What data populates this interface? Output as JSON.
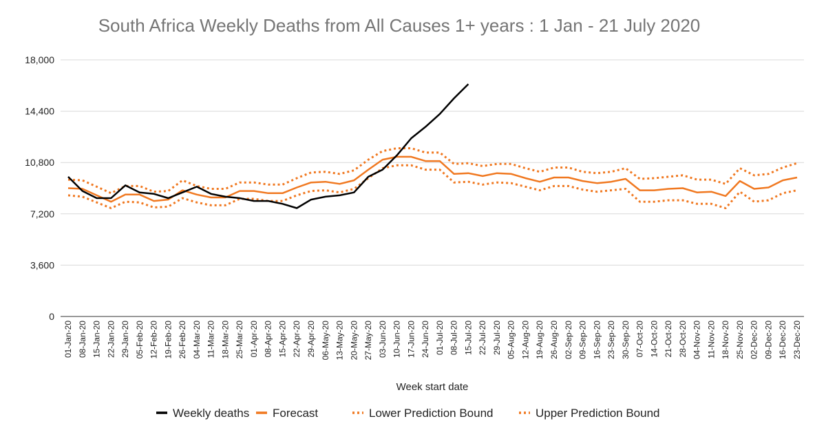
{
  "chart_data": {
    "type": "line",
    "title": "South Africa Weekly Deaths from All Causes 1+ years : 1 Jan  - 21 July 2020",
    "xlabel": "Week start date",
    "ylabel": "",
    "ylim": [
      0,
      18000
    ],
    "yticks": [
      "0",
      "3,600",
      "7,200",
      "10,800",
      "14,400",
      "18,000"
    ],
    "ytick_values": [
      0,
      3600,
      7200,
      10800,
      14400,
      18000
    ],
    "grid": true,
    "legend_position": "bottom",
    "categories": [
      "01-Jan-20",
      "08-Jan-20",
      "15-Jan-20",
      "22-Jan-20",
      "29-Jan-20",
      "05-Feb-20",
      "12-Feb-20",
      "19-Feb-20",
      "26-Feb-20",
      "04-Mar-20",
      "11-Mar-20",
      "18-Mar-20",
      "25-Mar-20",
      "01-Apr-20",
      "08-Apr-20",
      "15-Apr-20",
      "22-Apr-20",
      "29-Apr-20",
      "06-May-20",
      "13-May-20",
      "20-May-20",
      "27-May-20",
      "03-Jun-20",
      "10-Jun-20",
      "17-Jun-20",
      "24-Jun-20",
      "01-Jul-20",
      "08-Jul-20",
      "15-Jul-20",
      "22-Jul-20",
      "29-Jul-20",
      "05-Aug-20",
      "12-Aug-20",
      "19-Aug-20",
      "26-Aug-20",
      "02-Sep-20",
      "09-Sep-20",
      "16-Sep-20",
      "23-Sep-20",
      "30-Sep-20",
      "07-Oct-20",
      "14-Oct-20",
      "21-Oct-20",
      "28-Oct-20",
      "04-Nov-20",
      "11-Nov-20",
      "18-Nov-20",
      "25-Nov-20",
      "02-Dec-20",
      "09-Dec-20",
      "16-Dec-20",
      "23-Dec-20"
    ],
    "series": [
      {
        "name": "Weekly deaths",
        "color": "#000000",
        "style": "solid",
        "values": [
          9800,
          8800,
          8300,
          8300,
          9200,
          8700,
          8600,
          8300,
          8700,
          9100,
          8600,
          8400,
          8300,
          8100,
          8100,
          7900,
          7600,
          8200,
          8400,
          8500,
          8700,
          9800,
          10300,
          11300,
          12500,
          13300,
          14200,
          15300,
          16300,
          null,
          null,
          null,
          null,
          null,
          null,
          null,
          null,
          null,
          null,
          null,
          null,
          null,
          null,
          null,
          null,
          null,
          null,
          null,
          null,
          null,
          null,
          null
        ]
      },
      {
        "name": "Forecast",
        "color": "#f07820",
        "style": "solid",
        "values": [
          9000,
          8950,
          8500,
          8050,
          8550,
          8550,
          8100,
          8200,
          8850,
          8550,
          8350,
          8350,
          8800,
          8800,
          8650,
          8650,
          9050,
          9400,
          9450,
          9300,
          9550,
          10300,
          11000,
          11200,
          11200,
          10900,
          10900,
          10000,
          10050,
          9850,
          10050,
          10000,
          9700,
          9450,
          9750,
          9750,
          9500,
          9350,
          9450,
          9650,
          8850,
          8850,
          8950,
          9000,
          8700,
          8750,
          8450,
          9500,
          8950,
          9050,
          9550,
          9750
        ]
      },
      {
        "name": "Lower Prediction Bound",
        "color": "#f07820",
        "style": "dotted",
        "values": [
          8500,
          8400,
          8000,
          7600,
          8050,
          8000,
          7650,
          7700,
          8300,
          8000,
          7800,
          7800,
          8250,
          8250,
          8100,
          8100,
          8500,
          8800,
          8850,
          8700,
          8950,
          9700,
          10400,
          10600,
          10600,
          10300,
          10300,
          9400,
          9450,
          9250,
          9400,
          9350,
          9100,
          8850,
          9150,
          9150,
          8900,
          8750,
          8850,
          8950,
          8050,
          8050,
          8150,
          8150,
          7900,
          7900,
          7600,
          8750,
          8050,
          8150,
          8650,
          8850
        ]
      },
      {
        "name": "Upper Prediction Bound",
        "color": "#f07820",
        "style": "dotted",
        "values": [
          9600,
          9550,
          9100,
          8650,
          9150,
          9150,
          8750,
          8800,
          9550,
          9150,
          8950,
          8950,
          9400,
          9400,
          9250,
          9250,
          9700,
          10100,
          10150,
          10000,
          10250,
          11000,
          11600,
          11800,
          11800,
          11500,
          11500,
          10700,
          10750,
          10550,
          10700,
          10700,
          10400,
          10150,
          10450,
          10450,
          10150,
          10050,
          10150,
          10400,
          9650,
          9700,
          9800,
          9900,
          9600,
          9600,
          9300,
          10400,
          9900,
          10000,
          10450,
          10750
        ]
      }
    ]
  }
}
